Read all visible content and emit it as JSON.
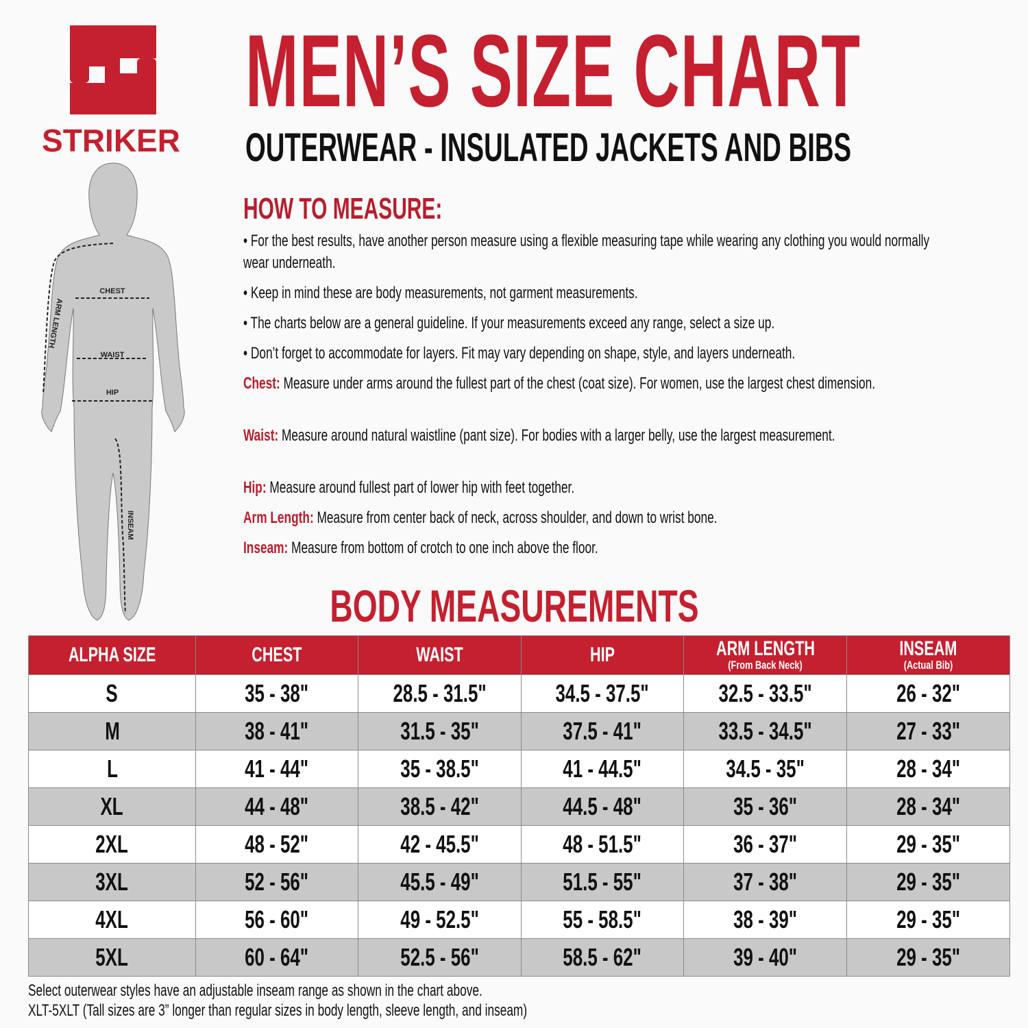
{
  "logo": {
    "letter": "S",
    "brand": "STRIKER",
    "color": "#c4202f"
  },
  "title": "MEN’S SIZE CHART",
  "subtitle": "OUTERWEAR - INSULATED JACKETS AND BIBS",
  "figure_labels": {
    "chest": "CHEST",
    "waist": "WAIST",
    "hip": "HIP",
    "arm": "ARM LENGTH",
    "inseam": "INSEAM"
  },
  "how_to": {
    "heading": "HOW TO MEASURE:",
    "bullets": [
      "• For the best results, have another person measure using a flexible measuring tape while wearing any clothing you would normally wear underneath.",
      "• Keep in mind these are body measurements, not garment measurements.",
      "• The charts below are a general guideline. If your measurements exceed any range, select a size up.",
      "• Don’t forget to accommodate for layers. Fit may vary depending on shape, style, and layers underneath."
    ],
    "definitions": [
      {
        "label": "Chest:",
        "text": " Measure under arms around the fullest part of the chest (coat size).  For women, use the largest chest dimension."
      },
      {
        "label": "Waist:",
        "text": " Measure around natural waistline (pant size). For bodies with a larger belly, use the largest measurement."
      },
      {
        "label": "Hip:",
        "text": " Measure around fullest part of lower hip with feet together."
      },
      {
        "label": "Arm Length:",
        "text": " Measure from center back of neck, across shoulder, and down to wrist bone."
      },
      {
        "label": "Inseam:",
        "text": " Measure from bottom of crotch to one inch above the floor."
      }
    ]
  },
  "table": {
    "heading": "BODY MEASUREMENTS",
    "columns": [
      {
        "title": "ALPHA SIZE",
        "sub": ""
      },
      {
        "title": "CHEST",
        "sub": ""
      },
      {
        "title": "WAIST",
        "sub": ""
      },
      {
        "title": "HIP",
        "sub": ""
      },
      {
        "title": "ARM LENGTH",
        "sub": "(From Back Neck)"
      },
      {
        "title": "INSEAM",
        "sub": "(Actual Bib)"
      }
    ],
    "rows": [
      [
        "S",
        "35 - 38\"",
        "28.5 - 31.5\"",
        "34.5 - 37.5\"",
        "32.5 - 33.5\"",
        "26 - 32\""
      ],
      [
        "M",
        "38 - 41\"",
        "31.5 - 35\"",
        "37.5 - 41\"",
        "33.5 - 34.5\"",
        "27 - 33\""
      ],
      [
        "L",
        "41 - 44\"",
        "35 - 38.5\"",
        "41 - 44.5\"",
        "34.5 - 35\"",
        "28 - 34\""
      ],
      [
        "XL",
        "44 - 48\"",
        "38.5 - 42\"",
        "44.5 - 48\"",
        "35 - 36\"",
        "28 - 34\""
      ],
      [
        "2XL",
        "48 - 52\"",
        "42 - 45.5\"",
        "48 - 51.5\"",
        "36 - 37\"",
        "29 - 35\""
      ],
      [
        "3XL",
        "52 - 56\"",
        "45.5 - 49\"",
        "51.5 - 55\"",
        "37 - 38\"",
        "29 - 35\""
      ],
      [
        "4XL",
        "56 - 60\"",
        "49 - 52.5\"",
        "55 - 58.5\"",
        "38 - 39\"",
        "29 - 35\""
      ],
      [
        "5XL",
        "60 - 64\"",
        "52.5 - 56\"",
        "58.5 - 62\"",
        "39 - 40\"",
        "29 - 35\""
      ]
    ]
  },
  "footnotes": [
    "Select outerwear styles have an adjustable inseam range as shown in the chart above.",
    "XLT-5XLT (Tall sizes are 3” longer than regular sizes in body length, sleeve length, and inseam)"
  ]
}
